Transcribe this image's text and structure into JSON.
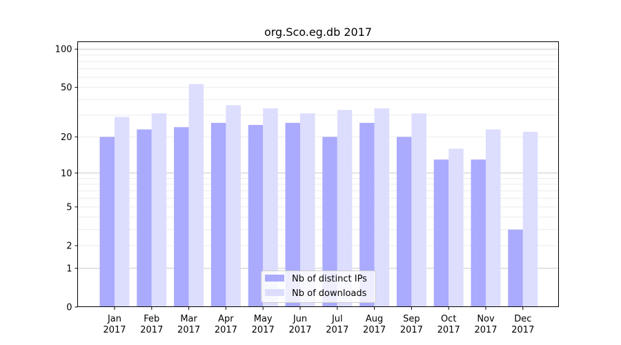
{
  "chart_data": {
    "type": "bar",
    "title": "org.Sco.eg.db 2017",
    "xlabel": "",
    "ylabel": "",
    "yscale": "log(1+y)",
    "ylim": [
      0,
      110
    ],
    "yticks": [
      0,
      1,
      2,
      5,
      10,
      20,
      50,
      100
    ],
    "grid": true,
    "legend": "bottom-center",
    "categories": [
      "Jan\n2017",
      "Feb\n2017",
      "Mar\n2017",
      "Apr\n2017",
      "May\n2017",
      "Jun\n2017",
      "Jul\n2017",
      "Aug\n2017",
      "Sep\n2017",
      "Oct\n2017",
      "Nov\n2017",
      "Dec\n2017"
    ],
    "series": [
      {
        "name": "Nb of distinct IPs",
        "color": "#aaaafe",
        "values": [
          20,
          23,
          24,
          26,
          25,
          26,
          20,
          26,
          20,
          13,
          13,
          3
        ]
      },
      {
        "name": "Nb of downloads",
        "color": "#ddddfe",
        "values": [
          29,
          31,
          53,
          36,
          34,
          31,
          33,
          34,
          31,
          16,
          23,
          22
        ]
      }
    ]
  }
}
